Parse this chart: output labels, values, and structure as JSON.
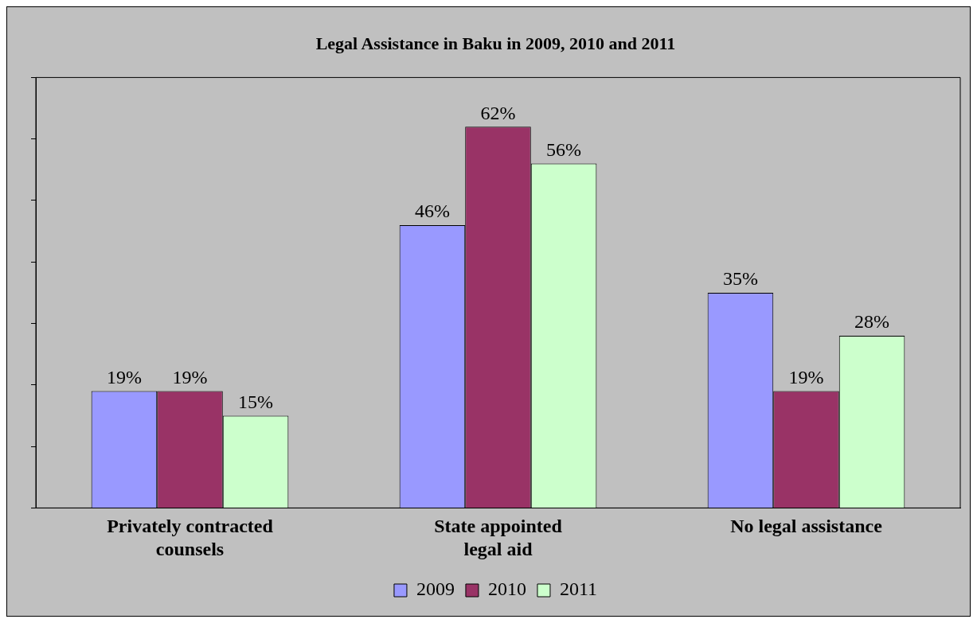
{
  "chart_data": {
    "type": "bar",
    "title": "Legal Assistance in Baku in 2009, 2010 and 2011",
    "categories": [
      "Privately contracted counsels",
      "State appointed legal aid",
      "No legal assistance"
    ],
    "series": [
      {
        "name": "2009",
        "color": "#9999ff",
        "values": [
          19,
          46,
          35
        ],
        "value_labels": [
          "19%",
          "46%",
          "35%"
        ]
      },
      {
        "name": "2010",
        "color": "#993366",
        "values": [
          19,
          62,
          19
        ],
        "value_labels": [
          "19%",
          "62%",
          "19%"
        ]
      },
      {
        "name": "2011",
        "color": "#ccffcc",
        "values": [
          15,
          56,
          28
        ],
        "value_labels": [
          "15%",
          "56%",
          "28%"
        ]
      }
    ],
    "ylim": [
      0,
      70
    ],
    "yticks": [
      {
        "value": 0,
        "label": null
      },
      {
        "value": 10,
        "label": null
      },
      {
        "value": 20,
        "label": null
      },
      {
        "value": 30,
        "label": null
      },
      {
        "value": 40,
        "label": null
      },
      {
        "value": 50,
        "label": null
      },
      {
        "value": 60,
        "label": null
      },
      {
        "value": 70,
        "label": null
      }
    ],
    "tick_labels": "x",
    "grid": false,
    "legend": "bottom"
  }
}
